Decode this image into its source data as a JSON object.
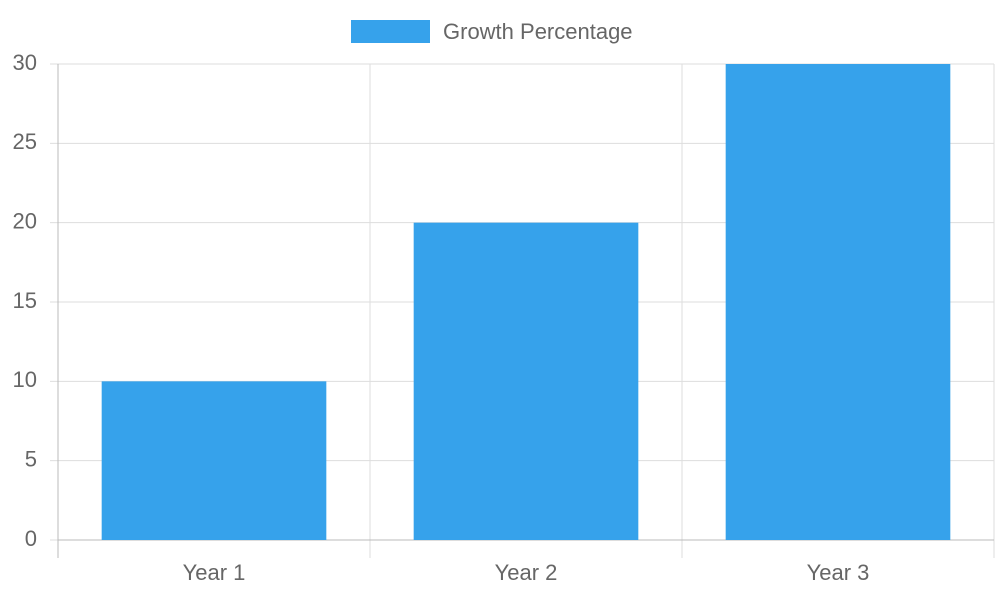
{
  "chart_data": {
    "type": "bar",
    "categories": [
      "Year 1",
      "Year 2",
      "Year 3"
    ],
    "series": [
      {
        "name": "Growth Percentage",
        "color": "#36a2eb",
        "values": [
          10,
          20,
          30
        ]
      }
    ],
    "ylim": [
      0,
      30
    ],
    "yticks": [
      0,
      5,
      10,
      15,
      20,
      25,
      30
    ],
    "grid": true,
    "legend": "top"
  }
}
